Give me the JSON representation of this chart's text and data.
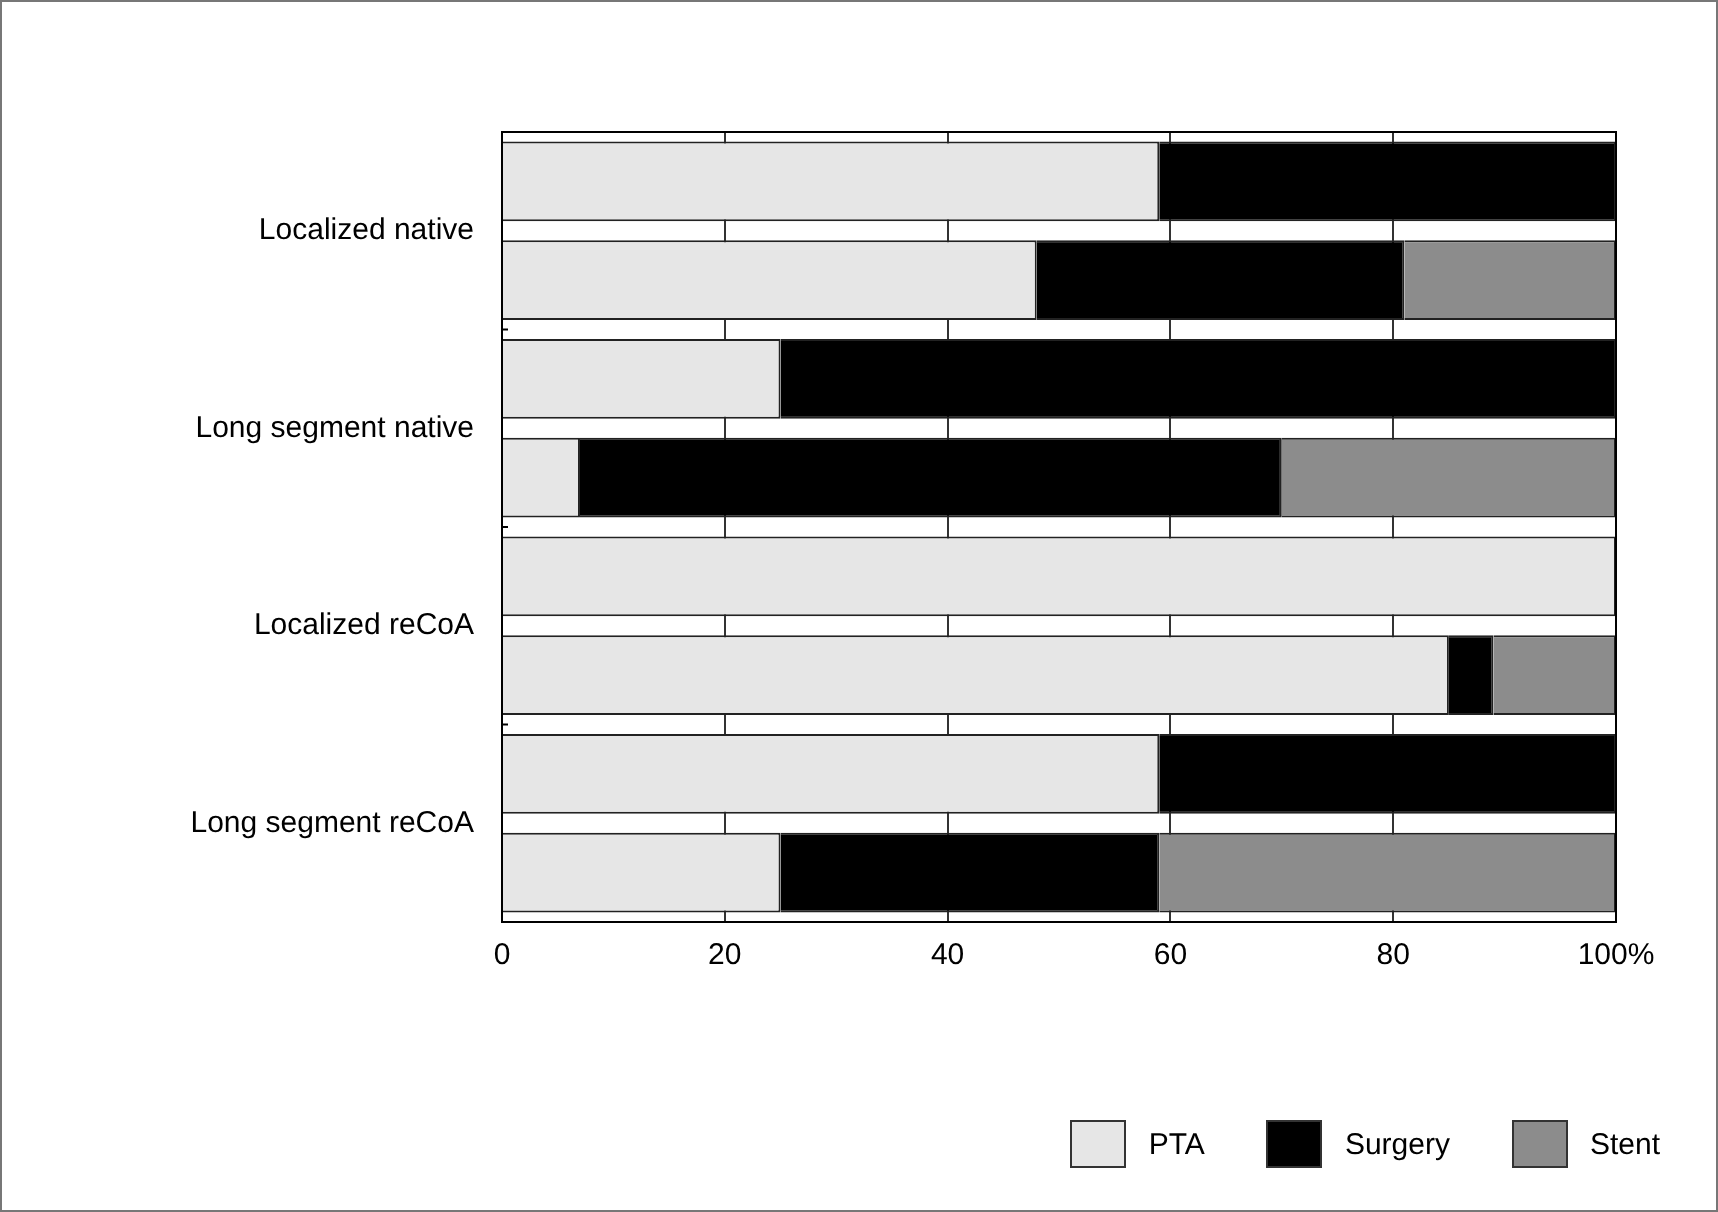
{
  "chart_data": {
    "type": "bar",
    "orientation": "horizontal",
    "stacked": true,
    "categories": [
      "Localized native",
      null,
      "Long segment native",
      null,
      "Localized reCoA",
      null,
      "Long segment reCoA",
      null
    ],
    "series": [
      {
        "name": "PTA",
        "color": "#e6e6e6",
        "values": [
          59,
          48,
          25,
          7,
          100,
          85,
          59,
          25
        ]
      },
      {
        "name": "Surgery",
        "color": "#000000",
        "values": [
          41,
          33,
          75,
          63,
          0,
          4,
          41,
          34
        ]
      },
      {
        "name": "Stent",
        "color": "#8c8c8c",
        "values": [
          0,
          19,
          0,
          30,
          0,
          11,
          0,
          41
        ]
      }
    ],
    "xlim": [
      0,
      100
    ],
    "xticks": [
      0,
      20,
      40,
      60,
      80,
      {
        "value": 100,
        "label": "100%"
      }
    ],
    "grid": "x",
    "legend": "bottom right"
  }
}
